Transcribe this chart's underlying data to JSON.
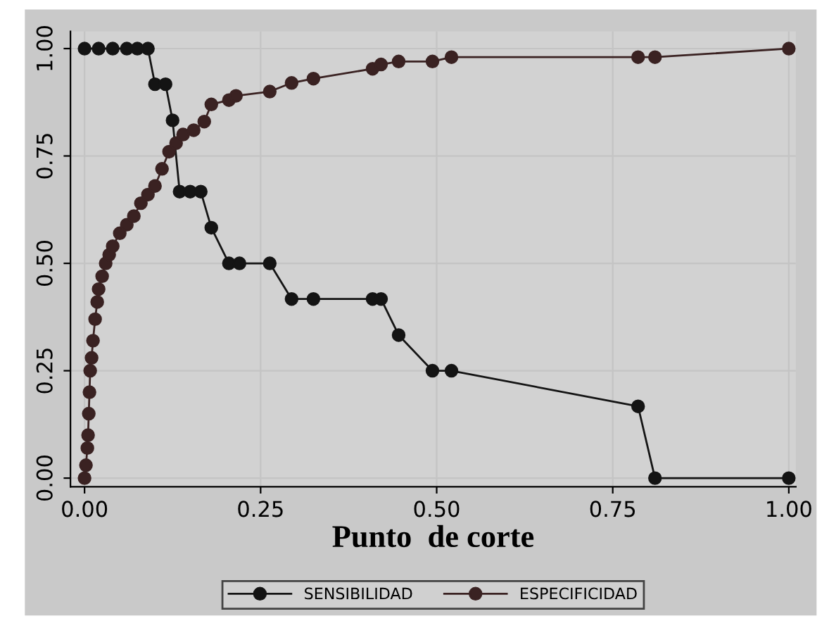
{
  "chart_data": {
    "type": "line",
    "xlabel": "Punto  de corte",
    "x": [
      0,
      0.02,
      0.04,
      0.06,
      0.075,
      0.09,
      0.1,
      0.115,
      0.125,
      0.135,
      0.15,
      0.165,
      0.18,
      0.205,
      0.22,
      0.263,
      0.294,
      0.325,
      0.409,
      0.421,
      0.446,
      0.494,
      0.521,
      0.786,
      0.81,
      1.0
    ],
    "series": [
      {
        "name": "SENSIBILIDAD",
        "color": "#141414",
        "values": [
          1,
          1,
          1,
          1,
          1,
          1,
          0.917,
          0.917,
          0.833,
          0.667,
          0.667,
          0.667,
          0.583,
          0.5,
          0.5,
          0.5,
          0.417,
          0.417,
          0.417,
          0.417,
          0.333,
          0.25,
          0.25,
          0.167,
          0,
          0
        ]
      },
      {
        "name": "ESPECIFICIDAD",
        "color": "#3a2222",
        "x": [
          0,
          0.002,
          0.004,
          0.005,
          0.006,
          0.007,
          0.008,
          0.01,
          0.012,
          0.015,
          0.018,
          0.02,
          0.025,
          0.03,
          0.035,
          0.04,
          0.05,
          0.06,
          0.07,
          0.08,
          0.09,
          0.1,
          0.11,
          0.12,
          0.13,
          0.14,
          0.155,
          0.17,
          0.18,
          0.205,
          0.215,
          0.263,
          0.294,
          0.325,
          0.409,
          0.421,
          0.446,
          0.494,
          0.521,
          0.786,
          0.81,
          1.0
        ],
        "values": [
          0,
          0.03,
          0.07,
          0.1,
          0.15,
          0.2,
          0.25,
          0.28,
          0.32,
          0.37,
          0.41,
          0.44,
          0.47,
          0.5,
          0.52,
          0.54,
          0.57,
          0.59,
          0.61,
          0.64,
          0.66,
          0.68,
          0.72,
          0.76,
          0.78,
          0.8,
          0.81,
          0.83,
          0.87,
          0.88,
          0.89,
          0.9,
          0.92,
          0.93,
          0.953,
          0.963,
          0.97,
          0.97,
          0.98,
          0.98,
          0.98,
          1.0
        ]
      }
    ],
    "xlim": [
      -0.02,
      1.01
    ],
    "ylim": [
      -0.02,
      1.04
    ],
    "xticks": [
      {
        "value": 0,
        "label": "0.00"
      },
      0.25,
      {
        "value": 0.5,
        "label": "0.50"
      },
      0.75,
      {
        "value": 1,
        "label": "1.00"
      }
    ],
    "yticks": [
      {
        "value": 0,
        "label": "0.00"
      },
      0.25,
      {
        "value": 0.5,
        "label": "0.50"
      },
      0.75,
      {
        "value": 1,
        "label": "1.00"
      }
    ],
    "grid": true,
    "legend": "bottom",
    "marker": "circle",
    "line_style": "solid"
  }
}
